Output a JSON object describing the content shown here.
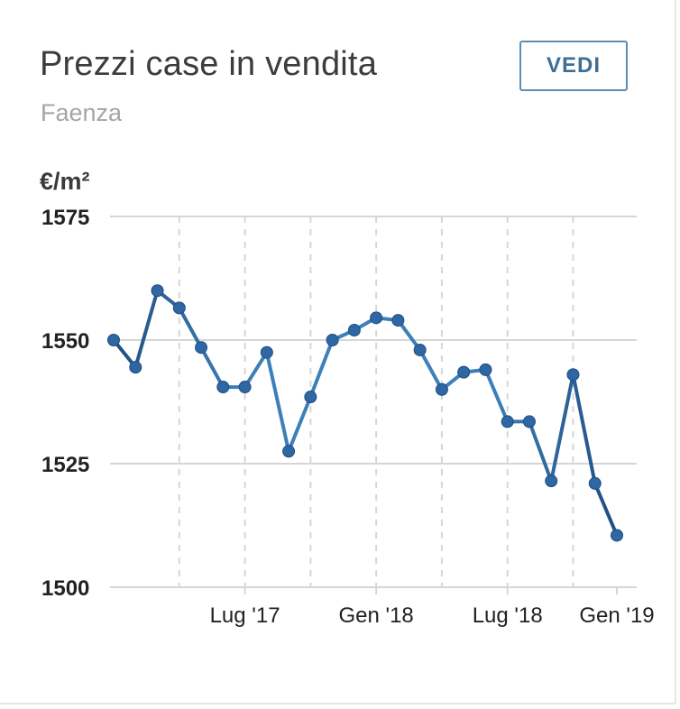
{
  "header": {
    "title": "Prezzi case in vendita",
    "subtitle": "Faenza",
    "button_label": "VEDI"
  },
  "colors": {
    "line_light": "#3d7fb8",
    "line_dark": "#1f4c7f",
    "marker": "#2e67a3",
    "button_border": "#5f8db0",
    "button_text": "#3e6f95",
    "gridline": "#d6d6d6"
  },
  "chart_data": {
    "type": "line",
    "ylabel": "€/m²",
    "ylim": [
      1500,
      1575
    ],
    "yticks": [
      1500,
      1525,
      1550,
      1575
    ],
    "xlabels": [
      {
        "label": "Lug '17",
        "index": 6
      },
      {
        "label": "Gen '18",
        "index": 12
      },
      {
        "label": "Lug '18",
        "index": 18
      },
      {
        "label": "Gen '19",
        "index": 23
      }
    ],
    "grid": true,
    "series": [
      {
        "values": [
          1550,
          1544.5,
          1560,
          1556.5,
          1548.5,
          1540.5,
          1540.5,
          1547.5,
          1527.5,
          1538.5,
          1550,
          1552,
          1554.5,
          1554,
          1548,
          1540,
          1543.5,
          1544,
          1533.5,
          1533.5,
          1521.5,
          1543,
          1521,
          1510.5
        ]
      }
    ]
  }
}
